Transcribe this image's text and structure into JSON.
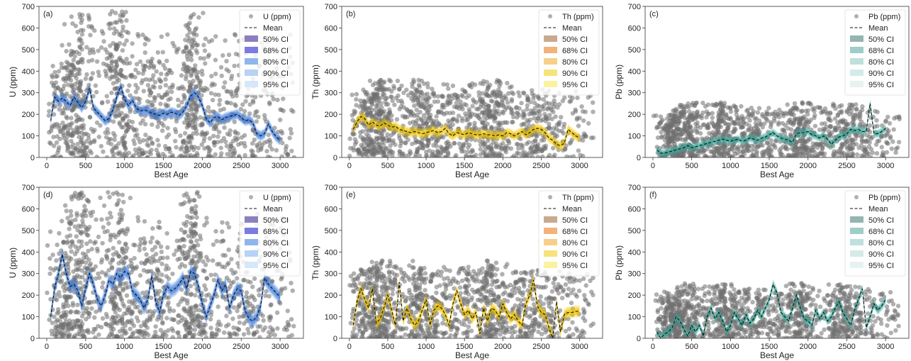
{
  "chart_data": [
    {
      "type": "scatter",
      "panel": "(a)",
      "element": "U",
      "xlabel": "Best Age",
      "ylabel": "U (ppm)",
      "xlim": [
        -100,
        3300
      ],
      "ylim": [
        0,
        700
      ],
      "xticks": [
        "0",
        "500",
        "1000",
        "1500",
        "2000",
        "2500",
        "3000"
      ],
      "yticks": [
        "0",
        "100",
        "200",
        "300",
        "400",
        "500",
        "600",
        "700"
      ],
      "legend_position": "top-right",
      "legend": [
        "U (ppm)",
        "Mean",
        "50% CI",
        "68% CI",
        "80% CI",
        "90% CI",
        "95% CI"
      ],
      "band_colors": [
        "#8c7fbf",
        "#7b7be0",
        "#8fb6ec",
        "#b6d3f5",
        "#d6e7fb"
      ],
      "band_halfwidths": [
        8,
        12,
        16,
        20,
        25
      ],
      "ci_fill": "#3f7fdc",
      "scatter_ymax": 680,
      "scatter_clusters": [
        [
          450,
          90,
          680
        ],
        [
          900,
          90,
          680
        ],
        [
          1850,
          70,
          680
        ],
        [
          250,
          120,
          450
        ],
        [
          1300,
          200,
          450
        ],
        [
          2300,
          350,
          380
        ]
      ],
      "mean": {
        "x": [
          50,
          100,
          150,
          200,
          250,
          300,
          350,
          400,
          450,
          500,
          550,
          600,
          650,
          700,
          750,
          800,
          850,
          900,
          950,
          1000,
          1050,
          1100,
          1150,
          1200,
          1250,
          1300,
          1350,
          1400,
          1450,
          1500,
          1550,
          1600,
          1650,
          1700,
          1750,
          1800,
          1850,
          1900,
          1950,
          2000,
          2050,
          2100,
          2150,
          2200,
          2250,
          2300,
          2350,
          2400,
          2450,
          2500,
          2550,
          2600,
          2650,
          2700,
          2750,
          2800,
          2850,
          2900,
          2950,
          3000
        ],
        "y": [
          170,
          280,
          260,
          275,
          260,
          240,
          280,
          255,
          230,
          260,
          320,
          230,
          210,
          190,
          170,
          180,
          220,
          280,
          330,
          270,
          240,
          265,
          230,
          215,
          220,
          215,
          205,
          200,
          195,
          205,
          200,
          210,
          205,
          195,
          210,
          240,
          285,
          300,
          280,
          240,
          180,
          160,
          185,
          190,
          175,
          185,
          190,
          195,
          200,
          185,
          170,
          175,
          160,
          110,
          100,
          110,
          155,
          120,
          95,
          80
        ]
      }
    },
    {
      "type": "scatter",
      "panel": "(b)",
      "element": "Th",
      "xlabel": "Best Age",
      "ylabel": "Th (ppm)",
      "xlim": [
        -100,
        3300
      ],
      "ylim": [
        0,
        700
      ],
      "xticks": [
        "0",
        "500",
        "1000",
        "1500",
        "2000",
        "2500",
        "3000"
      ],
      "yticks": [
        "0",
        "100",
        "200",
        "300",
        "400",
        "500",
        "600",
        "700"
      ],
      "legend_position": "top-right",
      "legend": [
        "Th (ppm)",
        "Mean",
        "50% CI",
        "68% CI",
        "80% CI",
        "90% CI",
        "95% CI"
      ],
      "band_colors": [
        "#c9a98d",
        "#f2b27a",
        "#f7cf8a",
        "#f6e37a",
        "#fbf2a0"
      ],
      "band_halfwidths": [
        6,
        10,
        14,
        18,
        24
      ],
      "ci_fill": "#f0c400",
      "scatter_ymax": 360,
      "scatter_clusters": [
        [
          450,
          100,
          360
        ],
        [
          900,
          120,
          360
        ],
        [
          1850,
          100,
          360
        ],
        [
          250,
          120,
          320
        ],
        [
          1400,
          250,
          340
        ],
        [
          2400,
          200,
          320
        ]
      ],
      "mean": {
        "x": [
          50,
          100,
          150,
          200,
          250,
          300,
          350,
          400,
          450,
          500,
          550,
          600,
          650,
          700,
          750,
          800,
          850,
          900,
          950,
          1000,
          1050,
          1100,
          1150,
          1200,
          1250,
          1300,
          1350,
          1400,
          1450,
          1500,
          1550,
          1600,
          1650,
          1700,
          1750,
          1800,
          1850,
          1900,
          1950,
          2000,
          2050,
          2100,
          2150,
          2200,
          2250,
          2300,
          2350,
          2400,
          2450,
          2500,
          2550,
          2600,
          2650,
          2700,
          2750,
          2800,
          2850,
          2900,
          2950,
          3000
        ],
        "y": [
          130,
          165,
          190,
          180,
          150,
          165,
          150,
          145,
          160,
          150,
          140,
          145,
          130,
          125,
          120,
          115,
          120,
          115,
          110,
          115,
          120,
          125,
          115,
          120,
          135,
          110,
          100,
          115,
          110,
          105,
          115,
          110,
          105,
          105,
          110,
          105,
          105,
          100,
          105,
          100,
          115,
          110,
          100,
          110,
          120,
          105,
          115,
          130,
          135,
          130,
          115,
          90,
          80,
          60,
          55,
          65,
          130,
          115,
          100,
          90
        ]
      }
    },
    {
      "type": "scatter",
      "panel": "(c)",
      "element": "Pb",
      "xlabel": "Best Age",
      "ylabel": "Pb (ppm)",
      "xlim": [
        -100,
        3300
      ],
      "ylim": [
        0,
        700
      ],
      "xticks": [
        "0",
        "500",
        "1000",
        "1500",
        "2000",
        "2500",
        "3000"
      ],
      "yticks": [
        "0",
        "100",
        "200",
        "300",
        "400",
        "500",
        "600",
        "700"
      ],
      "legend_position": "top-right",
      "legend": [
        "Pb (ppm)",
        "Mean",
        "50% CI",
        "68% CI",
        "80% CI",
        "90% CI",
        "95% CI"
      ],
      "band_colors": [
        "#94b5b2",
        "#9fcdc9",
        "#bfe0dc",
        "#d4ebe8",
        "#e6f3f1"
      ],
      "band_halfwidths": [
        5,
        8,
        11,
        15,
        20
      ],
      "ci_fill": "#3aa89c",
      "scatter_ymax": 255,
      "scatter_clusters": [
        [
          450,
          100,
          255
        ],
        [
          900,
          120,
          255
        ],
        [
          1900,
          120,
          255
        ],
        [
          250,
          80,
          200
        ],
        [
          1300,
          250,
          230
        ],
        [
          2450,
          150,
          250
        ]
      ],
      "mean": {
        "x": [
          50,
          100,
          150,
          200,
          250,
          300,
          350,
          400,
          450,
          500,
          550,
          600,
          650,
          700,
          750,
          800,
          850,
          900,
          950,
          1000,
          1050,
          1100,
          1150,
          1200,
          1250,
          1300,
          1350,
          1400,
          1450,
          1500,
          1550,
          1600,
          1650,
          1700,
          1750,
          1800,
          1850,
          1900,
          1950,
          2000,
          2050,
          2100,
          2150,
          2200,
          2250,
          2300,
          2350,
          2400,
          2450,
          2500,
          2550,
          2600,
          2650,
          2700,
          2750,
          2800,
          2850,
          2900,
          2950,
          3000
        ],
        "y": [
          35,
          20,
          20,
          25,
          30,
          35,
          40,
          45,
          55,
          45,
          50,
          55,
          60,
          65,
          70,
          75,
          80,
          85,
          80,
          75,
          80,
          85,
          75,
          80,
          90,
          85,
          80,
          90,
          95,
          105,
          115,
          100,
          90,
          85,
          80,
          70,
          110,
          115,
          115,
          120,
          105,
          100,
          90,
          100,
          85,
          60,
          80,
          95,
          100,
          110,
          130,
          125,
          130,
          120,
          120,
          250,
          110,
          110,
          120,
          135
        ]
      }
    },
    {
      "type": "scatter",
      "panel": "(d)",
      "element": "U",
      "xlabel": "Best Age",
      "ylabel": "U (ppm)",
      "xlim": [
        -100,
        3300
      ],
      "ylim": [
        0,
        700
      ],
      "xticks": [
        "0",
        "500",
        "1000",
        "1500",
        "2000",
        "2500",
        "3000"
      ],
      "yticks": [
        "0",
        "100",
        "200",
        "300",
        "400",
        "500",
        "600",
        "700"
      ],
      "legend_position": "top-right",
      "legend": [
        "U (ppm)",
        "Mean",
        "50% CI",
        "68% CI",
        "80% CI",
        "90% CI",
        "95% CI"
      ],
      "band_colors": [
        "#8c7fbf",
        "#7b7be0",
        "#8fb6ec",
        "#b6d3f5",
        "#d6e7fb"
      ],
      "band_halfwidths": [
        10,
        15,
        20,
        26,
        34
      ],
      "ci_fill": "#3f7fdc",
      "scatter_ymax": 680,
      "scatter_clusters": [
        [
          450,
          90,
          680
        ],
        [
          900,
          90,
          680
        ],
        [
          1850,
          70,
          680
        ],
        [
          250,
          120,
          450
        ],
        [
          1300,
          200,
          450
        ],
        [
          2300,
          350,
          380
        ]
      ],
      "mean": {
        "x": [
          50,
          100,
          150,
          200,
          250,
          300,
          350,
          400,
          450,
          500,
          550,
          600,
          650,
          700,
          750,
          800,
          850,
          900,
          950,
          1000,
          1050,
          1100,
          1150,
          1200,
          1250,
          1300,
          1350,
          1400,
          1450,
          1500,
          1550,
          1600,
          1650,
          1700,
          1750,
          1800,
          1850,
          1900,
          1950,
          2000,
          2050,
          2100,
          2150,
          2200,
          2250,
          2300,
          2350,
          2400,
          2450,
          2500,
          2550,
          2600,
          2650,
          2700,
          2750,
          2800,
          2850,
          2900,
          2950,
          3000
        ],
        "y": [
          100,
          230,
          300,
          390,
          300,
          240,
          250,
          220,
          150,
          230,
          300,
          250,
          180,
          150,
          200,
          270,
          250,
          300,
          280,
          310,
          300,
          220,
          200,
          180,
          140,
          180,
          290,
          170,
          120,
          200,
          240,
          220,
          230,
          250,
          280,
          230,
          310,
          300,
          240,
          160,
          100,
          150,
          200,
          270,
          220,
          250,
          140,
          200,
          230,
          220,
          130,
          90,
          80,
          100,
          150,
          280,
          250,
          230,
          210,
          190
        ]
      }
    },
    {
      "type": "scatter",
      "panel": "(e)",
      "element": "Th",
      "xlabel": "Best Age",
      "ylabel": "Th (ppm)",
      "xlim": [
        -100,
        3300
      ],
      "ylim": [
        0,
        700
      ],
      "xticks": [
        "0",
        "500",
        "1000",
        "1500",
        "2000",
        "2500",
        "3000"
      ],
      "yticks": [
        "0",
        "100",
        "200",
        "300",
        "400",
        "500",
        "600",
        "700"
      ],
      "legend_position": "top-right",
      "legend": [
        "Th (ppm)",
        "Mean",
        "50% CI",
        "68% CI",
        "80% CI",
        "90% CI",
        "95% CI"
      ],
      "band_colors": [
        "#c9a98d",
        "#f2b27a",
        "#f7cf8a",
        "#f6e37a",
        "#fbf2a0"
      ],
      "band_halfwidths": [
        8,
        12,
        16,
        21,
        28
      ],
      "ci_fill": "#f0c400",
      "scatter_ymax": 360,
      "scatter_clusters": [
        [
          450,
          100,
          360
        ],
        [
          900,
          120,
          360
        ],
        [
          1850,
          100,
          360
        ],
        [
          250,
          120,
          320
        ],
        [
          1400,
          250,
          340
        ],
        [
          2400,
          200,
          320
        ]
      ],
      "mean": {
        "x": [
          50,
          100,
          150,
          200,
          250,
          300,
          350,
          400,
          450,
          500,
          550,
          600,
          650,
          700,
          750,
          800,
          850,
          900,
          950,
          1000,
          1050,
          1100,
          1150,
          1200,
          1250,
          1300,
          1350,
          1400,
          1450,
          1500,
          1550,
          1600,
          1650,
          1700,
          1750,
          1800,
          1850,
          1900,
          1950,
          2000,
          2050,
          2100,
          2150,
          2200,
          2250,
          2300,
          2350,
          2400,
          2450,
          2500,
          2550,
          2600,
          2650,
          2700,
          2750,
          2800,
          2850,
          2900,
          2950,
          3000
        ],
        "y": [
          60,
          170,
          230,
          180,
          140,
          230,
          70,
          90,
          140,
          200,
          130,
          60,
          260,
          80,
          140,
          90,
          60,
          80,
          130,
          180,
          60,
          130,
          150,
          140,
          110,
          60,
          160,
          220,
          160,
          110,
          130,
          90,
          120,
          20,
          140,
          80,
          140,
          130,
          100,
          160,
          120,
          90,
          110,
          80,
          60,
          160,
          200,
          270,
          150,
          120,
          110,
          50,
          0,
          170,
          30,
          110,
          120,
          120,
          125,
          125
        ]
      }
    },
    {
      "type": "scatter",
      "panel": "(f)",
      "element": "Pb",
      "xlabel": "Best Age",
      "ylabel": "Pb (ppm)",
      "xlim": [
        -100,
        3300
      ],
      "ylim": [
        0,
        700
      ],
      "xticks": [
        "0",
        "500",
        "1000",
        "1500",
        "2000",
        "2500",
        "3000"
      ],
      "yticks": [
        "0",
        "100",
        "200",
        "300",
        "400",
        "500",
        "600",
        "700"
      ],
      "legend_position": "top-right",
      "legend": [
        "Pb (ppm)",
        "Mean",
        "50% CI",
        "68% CI",
        "80% CI",
        "90% CI",
        "95% CI"
      ],
      "band_colors": [
        "#94b5b2",
        "#9fcdc9",
        "#bfe0dc",
        "#d4ebe8",
        "#e6f3f1"
      ],
      "band_halfwidths": [
        6,
        9,
        13,
        17,
        22
      ],
      "ci_fill": "#3aa89c",
      "scatter_ymax": 255,
      "scatter_clusters": [
        [
          450,
          100,
          255
        ],
        [
          900,
          120,
          255
        ],
        [
          1900,
          120,
          255
        ],
        [
          250,
          80,
          200
        ],
        [
          1300,
          250,
          230
        ],
        [
          2450,
          150,
          250
        ]
      ],
      "mean": {
        "x": [
          50,
          100,
          150,
          200,
          250,
          300,
          350,
          400,
          450,
          500,
          550,
          600,
          650,
          700,
          750,
          800,
          850,
          900,
          950,
          1000,
          1050,
          1100,
          1150,
          1200,
          1250,
          1300,
          1350,
          1400,
          1450,
          1500,
          1550,
          1600,
          1650,
          1700,
          1750,
          1800,
          1850,
          1900,
          1950,
          2000,
          2050,
          2100,
          2150,
          2200,
          2250,
          2300,
          2350,
          2400,
          2450,
          2500,
          2550,
          2600,
          2650,
          2700,
          2750,
          2800,
          2850,
          2900,
          2950,
          3000
        ],
        "y": [
          30,
          0,
          20,
          30,
          50,
          100,
          80,
          40,
          10,
          60,
          30,
          60,
          10,
          100,
          140,
          90,
          120,
          80,
          30,
          60,
          120,
          90,
          60,
          110,
          70,
          90,
          130,
          100,
          140,
          180,
          250,
          210,
          120,
          100,
          80,
          140,
          200,
          140,
          90,
          80,
          60,
          130,
          90,
          120,
          80,
          100,
          140,
          170,
          120,
          90,
          60,
          130,
          180,
          230,
          50,
          100,
          160,
          130,
          150,
          180
        ]
      }
    }
  ]
}
